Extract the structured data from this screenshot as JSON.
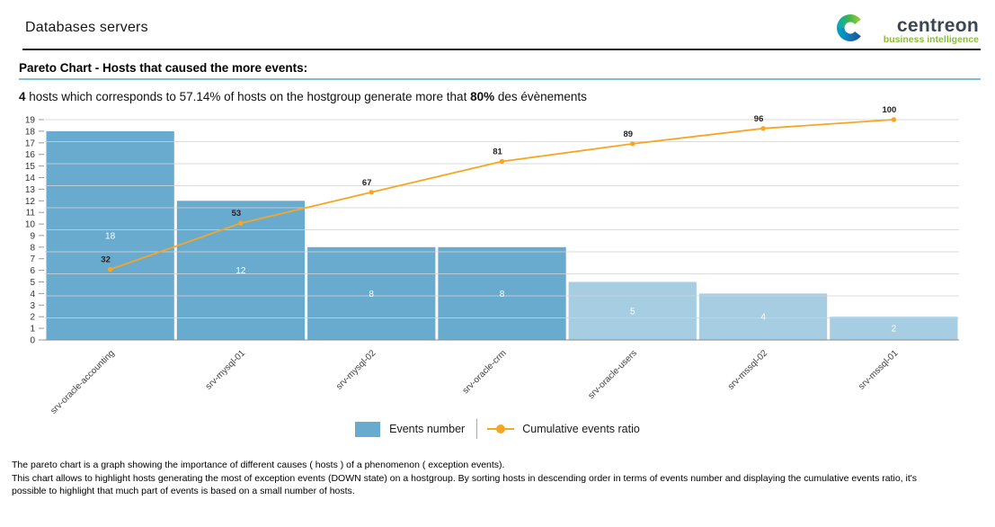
{
  "page": {
    "title": "Databases servers"
  },
  "logo": {
    "brand": "centreon",
    "tagline": "business intelligence"
  },
  "section": {
    "heading": "Pareto Chart - Hosts that caused the more events:"
  },
  "summary": {
    "bold_count": "4",
    "text_mid": " hosts which corresponds to 57.14% of hosts on the hostgroup generate more that ",
    "bold_pct": "80%",
    "text_end": " des évènements"
  },
  "chart_data": {
    "type": "bar",
    "subtype": "pareto (bars + cumulative line)",
    "title": "Pareto Chart - Hosts that caused the more events",
    "categories": [
      "srv-oracle-accounting",
      "srv-mysql-01",
      "srv-mysql-02",
      "srv-oracle-crm",
      "srv-oracle-users",
      "srv-mssql-02",
      "srv-mssql-01"
    ],
    "series": [
      {
        "name": "Events number",
        "type": "bar",
        "values": [
          18,
          12,
          8,
          8,
          5,
          4,
          2
        ]
      },
      {
        "name": "Cumulative events ratio",
        "type": "line",
        "unit": "%",
        "values": [
          32,
          53,
          67,
          81,
          89,
          96,
          100
        ]
      }
    ],
    "xlabel": "",
    "ylabel": "",
    "ylim": [
      0,
      19
    ],
    "y_tick_step": 1,
    "right_axis": {
      "min": 0,
      "max": 100,
      "gridline_step_pct": 10,
      "labels_visible": false
    },
    "grid": true,
    "legend_position": "bottom",
    "highlight_bar_count": 4,
    "bar_labels_inside": true,
    "x_labels_rotation_deg": -45
  },
  "legend": {
    "items": [
      {
        "label": "Events number",
        "marker": "bar-swatch"
      },
      {
        "label": "Cumulative events ratio",
        "marker": "line-dot"
      }
    ]
  },
  "footer": {
    "lines": [
      "The pareto chart is a graph showing the importance of different causes ( hosts ) of a phenomenon ( exception events).",
      "This chart allows to highlight hosts generating the most of exception events (DOWN state) on a hostgroup. By sorting hosts in descending order in terms of events number and displaying the cumulative events ratio, it's",
      "possible to highlight that much part of events is based on a small number of hosts."
    ]
  },
  "colors": {
    "bar_primary": "#69abce",
    "bar_secondary": "#a7cde2",
    "line": "#f6a623",
    "grid": "#d2d2d2",
    "axis": "#8a8a8a",
    "tick": "#999999",
    "y_label": "#333333",
    "x_label": "#3c3c3c",
    "bar_label": "#ffffff",
    "point_label": "#222222",
    "heading_rule": "#7ebfdc",
    "logo_green": "#8abd3c",
    "logo_blue": "#00a5cf",
    "logo_navy": "#1d4e9e",
    "logo_text": "#3a4750"
  }
}
